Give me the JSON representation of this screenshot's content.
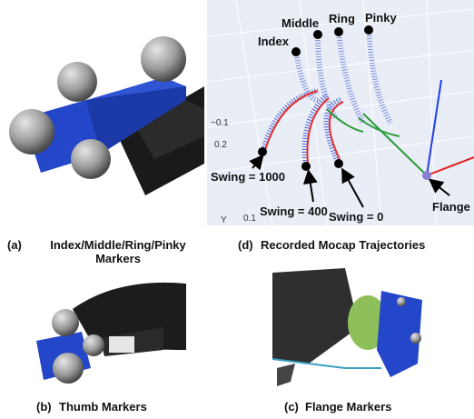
{
  "panels": [
    {
      "label": "(a)",
      "caption": "Index/Middle/Ring/Pinky Markers"
    },
    {
      "label": "(d)",
      "caption": "Recorded Mocap Trajectories"
    },
    {
      "label": "(b)",
      "caption": "Thumb Markers"
    },
    {
      "label": "(c)",
      "caption": "Flange Markers"
    }
  ],
  "plot": {
    "finger_labels": [
      "Index",
      "Middle",
      "Ring",
      "Pinky"
    ],
    "swing_labels": [
      "Swing = 1000",
      "Swing = 400",
      "Swing = 0"
    ],
    "flange_label": "Flange",
    "axis_labels": [
      "−0.1",
      "0.2",
      "Y",
      "0.1"
    ]
  }
}
